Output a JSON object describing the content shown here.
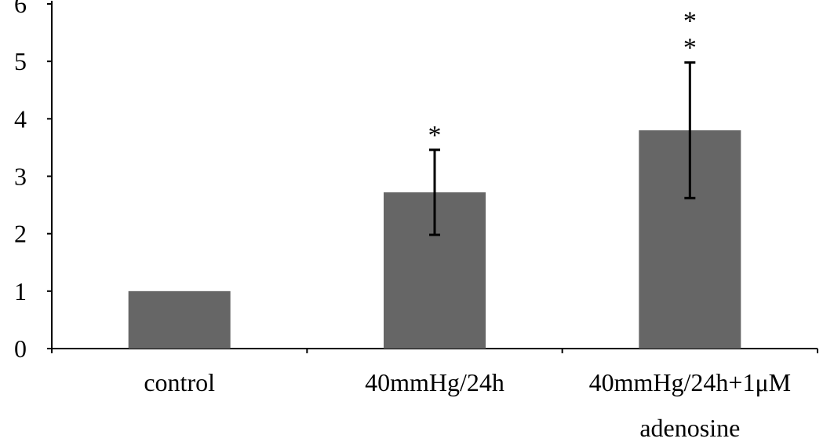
{
  "chart_data": {
    "type": "bar",
    "title": "",
    "xlabel": "",
    "ylabel": "",
    "ylim": [
      0,
      6
    ],
    "y_ticks": [
      "0",
      "1",
      "2",
      "3",
      "4",
      "5",
      "6"
    ],
    "categories": [
      [
        "control"
      ],
      [
        "40mmHg/24h"
      ],
      [
        "40mmHg/24h+1μM",
        "adenosine"
      ]
    ],
    "values": [
      1.0,
      2.72,
      3.8
    ],
    "error_bars": [
      0,
      0.74,
      1.18
    ],
    "significance": [
      "",
      "*",
      "**"
    ],
    "grid": false,
    "legend": "none",
    "bar_color": "#666666",
    "axis_color": "#000000"
  }
}
